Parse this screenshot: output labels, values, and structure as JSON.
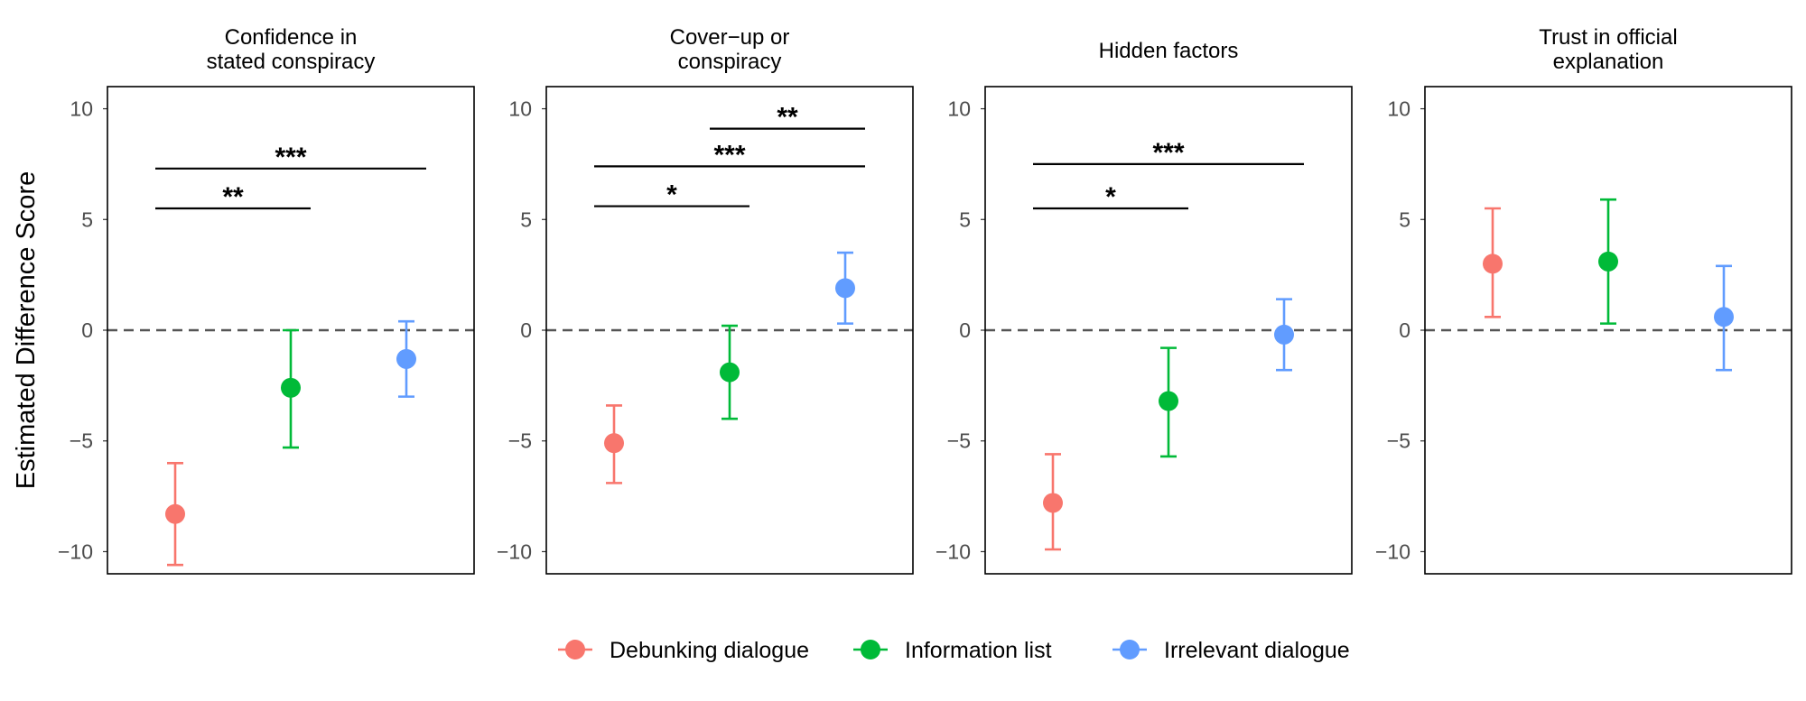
{
  "chart_data": {
    "type": "scatter",
    "ylabel": "Estimated Difference Score",
    "ylim": [
      -11,
      11
    ],
    "yticks": [
      -10,
      -5,
      0,
      5,
      10
    ],
    "ytick_labels": [
      "−10",
      "−5",
      "0",
      "5",
      "10"
    ],
    "reference_line": 0,
    "grid": false,
    "legend_position": "bottom",
    "conditions": [
      {
        "name": "Debunking dialogue",
        "color": "#F8766D"
      },
      {
        "name": "Information list",
        "color": "#00BA38"
      },
      {
        "name": "Irrelevant dialogue",
        "color": "#619CFF"
      }
    ],
    "panels": [
      {
        "title_lines": [
          "Confidence in",
          "stated conspiracy"
        ],
        "points": [
          {
            "condition": "Debunking dialogue",
            "estimate": -8.3,
            "lower": -10.6,
            "upper": -6.0
          },
          {
            "condition": "Information list",
            "estimate": -2.6,
            "lower": -5.3,
            "upper": 0.0
          },
          {
            "condition": "Irrelevant dialogue",
            "estimate": -1.3,
            "lower": -3.0,
            "upper": 0.4
          }
        ],
        "significance": [
          {
            "from": "Debunking dialogue",
            "to": "Information list",
            "y": 5.5,
            "label": "**"
          },
          {
            "from": "Debunking dialogue",
            "to": "Irrelevant dialogue",
            "y": 7.3,
            "label": "***"
          }
        ]
      },
      {
        "title_lines": [
          "Cover−up or",
          "conspiracy"
        ],
        "points": [
          {
            "condition": "Debunking dialogue",
            "estimate": -5.1,
            "lower": -6.9,
            "upper": -3.4
          },
          {
            "condition": "Information list",
            "estimate": -1.9,
            "lower": -4.0,
            "upper": 0.2
          },
          {
            "condition": "Irrelevant dialogue",
            "estimate": 1.9,
            "lower": 0.3,
            "upper": 3.5
          }
        ],
        "significance": [
          {
            "from": "Debunking dialogue",
            "to": "Information list",
            "y": 5.6,
            "label": "*"
          },
          {
            "from": "Debunking dialogue",
            "to": "Irrelevant dialogue",
            "y": 7.4,
            "label": "***"
          },
          {
            "from": "Information list",
            "to": "Irrelevant dialogue",
            "y": 9.1,
            "label": "**"
          }
        ]
      },
      {
        "title_lines": [
          "Hidden factors"
        ],
        "points": [
          {
            "condition": "Debunking dialogue",
            "estimate": -7.8,
            "lower": -9.9,
            "upper": -5.6
          },
          {
            "condition": "Information list",
            "estimate": -3.2,
            "lower": -5.7,
            "upper": -0.8
          },
          {
            "condition": "Irrelevant dialogue",
            "estimate": -0.2,
            "lower": -1.8,
            "upper": 1.4
          }
        ],
        "significance": [
          {
            "from": "Debunking dialogue",
            "to": "Information list",
            "y": 5.5,
            "label": "*"
          },
          {
            "from": "Debunking dialogue",
            "to": "Irrelevant dialogue",
            "y": 7.5,
            "label": "***"
          }
        ]
      },
      {
        "title_lines": [
          "Trust in official",
          "explanation"
        ],
        "points": [
          {
            "condition": "Debunking dialogue",
            "estimate": 3.0,
            "lower": 0.6,
            "upper": 5.5
          },
          {
            "condition": "Information list",
            "estimate": 3.1,
            "lower": 0.3,
            "upper": 5.9
          },
          {
            "condition": "Irrelevant dialogue",
            "estimate": 0.6,
            "lower": -1.8,
            "upper": 2.9
          }
        ],
        "significance": []
      }
    ]
  }
}
